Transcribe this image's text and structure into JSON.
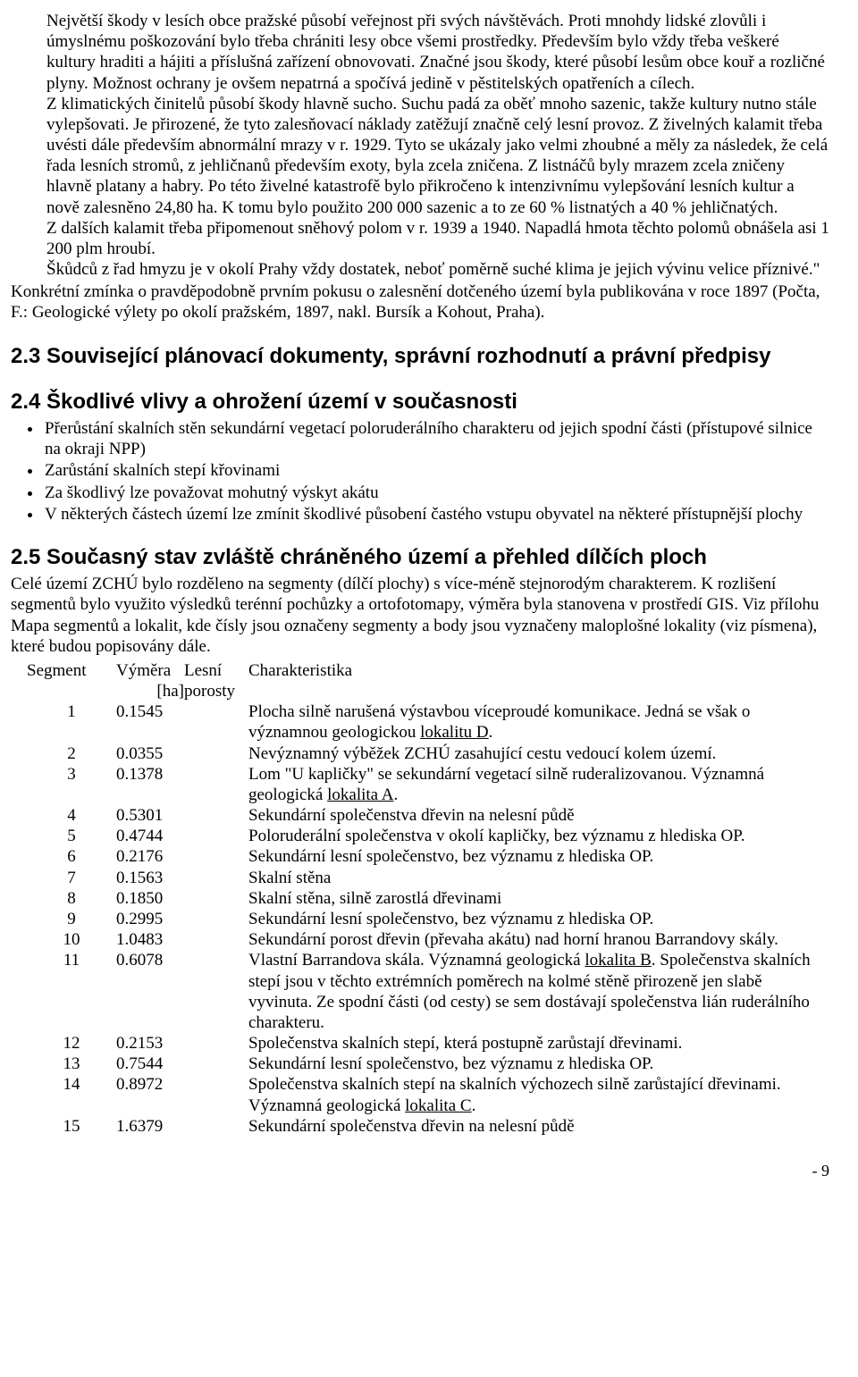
{
  "quoted": {
    "p1": "Největší škody v lesích obce pražské působí veřejnost při svých návštěvách. Proti mnohdy lidské zlovůli i úmyslnému poškozování bylo třeba chrániti lesy obce všemi prostředky. Především bylo vždy třeba veškeré kultury hraditi a hájiti a příslušná zařízení obnovovati. Značné jsou škody, které působí lesům obce kouř a rozličné plyny. Možnost ochrany je ovšem nepatrná a spočívá jedině v pěstitelských opatřeních a cílech.",
    "p2": "Z klimatických činitelů působí škody hlavně sucho. Suchu padá za oběť mnoho sazenic, takže kultury nutno stále vylepšovati. Je přirozené, že tyto zalesňovací náklady zatěžují značně celý lesní provoz. Z živelných kalamit třeba uvésti dále především abnormální mrazy v r. 1929. Tyto se ukázaly jako velmi zhoubné a měly za následek, že celá řada lesních stromů, z jehličnanů především exoty, byla zcela zničena. Z listnáčů byly mrazem zcela zničeny hlavně platany a habry. Po této živelné katastrofě bylo přikročeno k intenzivnímu vylepšování lesních kultur a nově zalesněno 24,80 ha. K tomu bylo použito 200 000 sazenic a to ze 60 % listnatých a 40 % jehličnatých.",
    "p3": "Z dalších kalamit třeba připomenout sněhový polom v r. 1939 a 1940. Napadlá hmota těchto polomů obnášela asi 1 200 plm hroubí.",
    "p4": "Škůdců z řad hmyzu je v okolí Prahy vždy dostatek, neboť poměrně suché klima je jejich vývinu velice příznivé.\""
  },
  "after_quote": "Konkrétní zmínka o pravděpodobně prvním pokusu o zalesnění dotčeného území byla publikována v roce 1897 (Počta, F.: Geologické výlety po okolí pražském, 1897, nakl. Bursík a Kohout, Praha).",
  "h23": "2.3 Související plánovací dokumenty, správní rozhodnutí a právní předpisy",
  "h24": "2.4 Škodlivé vlivy a ohrožení území v současnosti",
  "bullets24": [
    "Přerůstání skalních stěn sekundární vegetací poloruderálního charakteru od jejich spodní části (přístupové silnice na okraji NPP)",
    "Zarůstání skalních stepí křovinami",
    "Za škodlivý lze považovat mohutný výskyt akátu",
    "V některých částech území lze zmínit škodlivé působení častého vstupu obyvatel na některé přístupnější plochy"
  ],
  "h25": "2.5 Současný stav zvláště chráněného území a přehled dílčích ploch",
  "seg_intro": "Celé území ZCHÚ bylo rozděleno na segmenty (dílčí plochy) s více-méně stejnorodým charakterem. K rozlišení segmentů bylo využito výsledků terénní pochůzky a ortofotomapy, výměra byla stanovena v prostředí GIS. Viz přílohu Mapa segmentů a lokalit, kde čísly jsou označeny segmenty a body jsou vyznačeny maloplošné lokality (viz písmena), které budou popisovány dále.",
  "seg_header": {
    "seg": "Segment",
    "area1": "Výměra",
    "area2": "[ha]",
    "forest1": "Lesní",
    "forest2": "porosty",
    "char": "Charakteristika"
  },
  "segments": [
    {
      "n": "1",
      "a": "0.1545",
      "c_pre": "Plocha silně narušená výstavbou víceproudé komunikace. Jedná se však o významnou geologickou ",
      "u": "lokalitu D",
      "c_post": "."
    },
    {
      "n": "2",
      "a": "0.0355",
      "c_pre": "Nevýznamný výběžek ZCHÚ zasahující cestu vedoucí kolem území.",
      "u": "",
      "c_post": ""
    },
    {
      "n": "3",
      "a": "0.1378",
      "c_pre": "Lom \"U kapličky\" se sekundární vegetací silně ruderalizovanou. Významná geologická ",
      "u": "lokalita A",
      "c_post": "."
    },
    {
      "n": "4",
      "a": "0.5301",
      "c_pre": "Sekundární společenstva dřevin na nelesní půdě",
      "u": "",
      "c_post": ""
    },
    {
      "n": "5",
      "a": "0.4744",
      "c_pre": "Poloruderální společenstva v okolí kapličky, bez významu z hlediska OP.",
      "u": "",
      "c_post": ""
    },
    {
      "n": "6",
      "a": "0.2176",
      "c_pre": "Sekundární lesní společenstvo, bez významu z hlediska OP.",
      "u": "",
      "c_post": ""
    },
    {
      "n": "7",
      "a": "0.1563",
      "c_pre": "Skalní stěna",
      "u": "",
      "c_post": ""
    },
    {
      "n": "8",
      "a": "0.1850",
      "c_pre": "Skalní stěna, silně zarostlá dřevinami",
      "u": "",
      "c_post": ""
    },
    {
      "n": "9",
      "a": "0.2995",
      "c_pre": "Sekundární lesní společenstvo, bez významu z hlediska OP.",
      "u": "",
      "c_post": ""
    },
    {
      "n": "10",
      "a": "1.0483",
      "c_pre": "Sekundární porost dřevin (převaha akátu) nad horní hranou Barrandovy skály.",
      "u": "",
      "c_post": ""
    },
    {
      "n": "11",
      "a": "0.6078",
      "c_pre": "Vlastní Barrandova skála. Významná geologická ",
      "u": "lokalita B",
      "c_post": ". Společenstva skalních stepí jsou v těchto extrémních poměrech na kolmé stěně přirozeně jen slabě vyvinuta. Ze spodní části (od cesty) se sem dostávají společenstva lián ruderálního charakteru."
    },
    {
      "n": "12",
      "a": "0.2153",
      "c_pre": "Společenstva skalních stepí, která postupně zarůstají dřevinami.",
      "u": "",
      "c_post": ""
    },
    {
      "n": "13",
      "a": "0.7544",
      "c_pre": "Sekundární lesní společenstvo, bez významu z hlediska OP.",
      "u": "",
      "c_post": ""
    },
    {
      "n": "14",
      "a": "0.8972",
      "c_pre": "Společenstva skalních stepí na skalních výchozech silně zarůstající dřevinami. Významná geologická ",
      "u": "lokalita C",
      "c_post": "."
    },
    {
      "n": "15",
      "a": "1.6379",
      "c_pre": "Sekundární společenstva dřevin na nelesní půdě",
      "u": "",
      "c_post": ""
    }
  ],
  "page_number": "- 9"
}
